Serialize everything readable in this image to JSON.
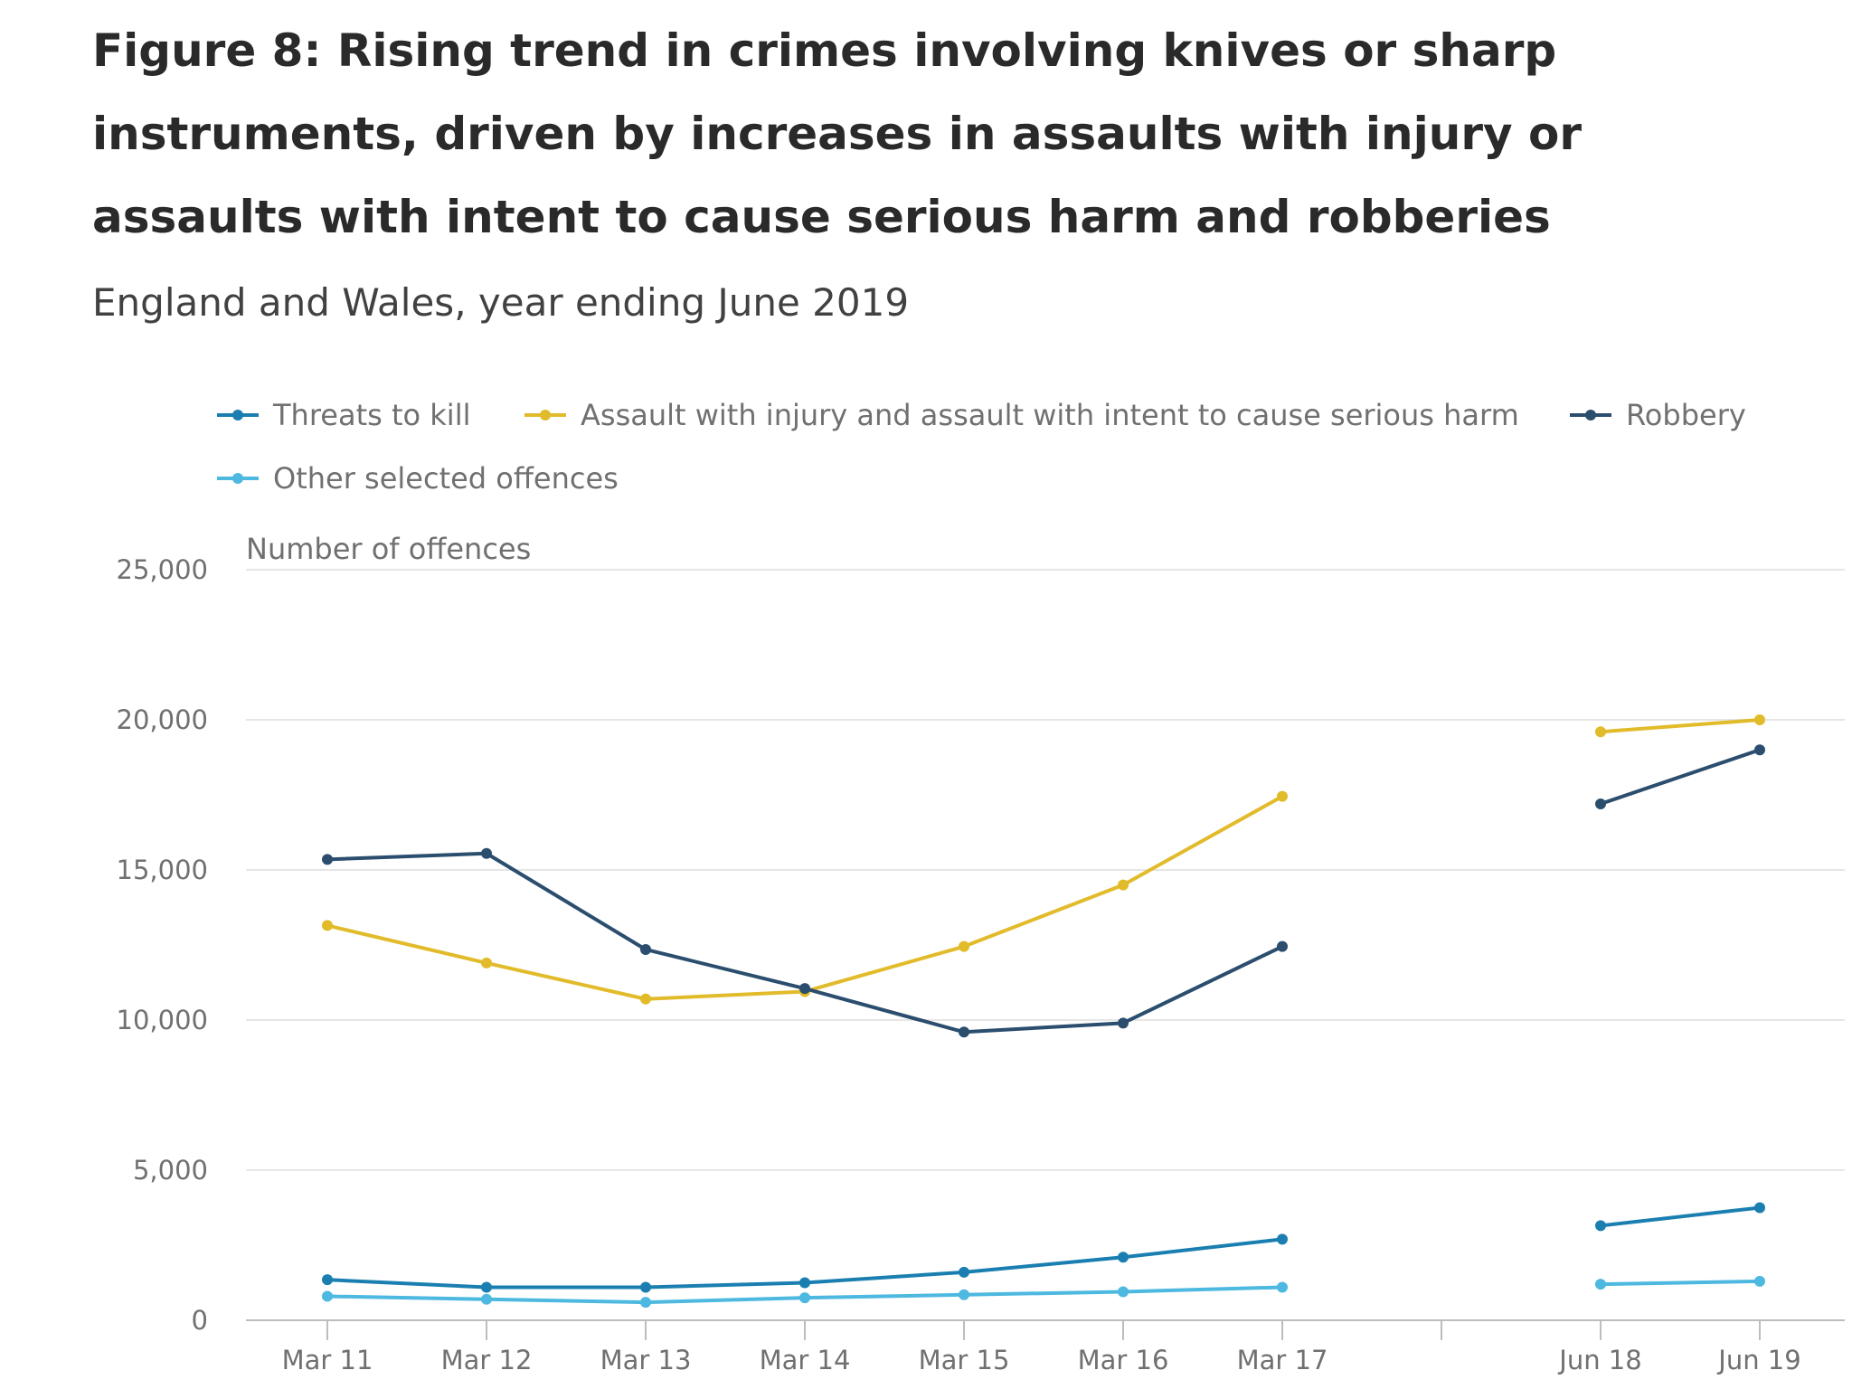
{
  "header": {
    "title": "Figure 8: Rising trend in crimes involving knives or sharp instruments, driven by increases in assaults with injury or assaults with intent to cause serious harm and robberies",
    "subtitle": "England and Wales, year ending June 2019"
  },
  "legend": [
    {
      "label": "Threats to kill",
      "color": "#1a7fb0"
    },
    {
      "label": "Assault with injury and assault with intent to cause serious harm",
      "color": "#e2bb2a"
    },
    {
      "label": "Robbery",
      "color": "#2b4e6e"
    },
    {
      "label": "Other selected offences",
      "color": "#4db8e0"
    }
  ],
  "chart_data": {
    "type": "line",
    "title": "Figure 8: Rising trend in crimes involving knives or sharp instruments, driven by increases in assaults with injury or assaults with intent to cause serious harm and robberies",
    "subtitle": "England and Wales, year ending June 2019",
    "ylabel": "Number of offences",
    "xlabel": "",
    "ylim": [
      0,
      25000
    ],
    "yticks": [
      0,
      5000,
      10000,
      15000,
      20000,
      25000
    ],
    "ytick_labels": [
      "0",
      "5,000",
      "10,000",
      "15,000",
      "20,000",
      "25,000"
    ],
    "categories": [
      "Mar 11",
      "Mar 12",
      "Mar 13",
      "Mar 14",
      "Mar 15",
      "Mar 16",
      "Mar 17",
      "",
      "Jun 18",
      "Jun 19"
    ],
    "grid": true,
    "legend_position": "top",
    "series": [
      {
        "name": "Threats to kill",
        "color": "#1a7fb0",
        "values": [
          1350,
          1100,
          1100,
          1250,
          1600,
          2100,
          2700,
          null,
          3150,
          3750
        ]
      },
      {
        "name": "Assault with injury and assault with intent to cause serious harm",
        "color": "#e2bb2a",
        "values": [
          13150,
          11900,
          10700,
          10950,
          12450,
          14500,
          17450,
          null,
          19600,
          20000
        ]
      },
      {
        "name": "Robbery",
        "color": "#2b4e6e",
        "values": [
          15350,
          15550,
          12350,
          11050,
          9600,
          9900,
          12450,
          null,
          17200,
          19000
        ]
      },
      {
        "name": "Other selected offences",
        "color": "#4db8e0",
        "values": [
          800,
          700,
          600,
          750,
          850,
          950,
          1100,
          null,
          1200,
          1300
        ]
      }
    ]
  }
}
